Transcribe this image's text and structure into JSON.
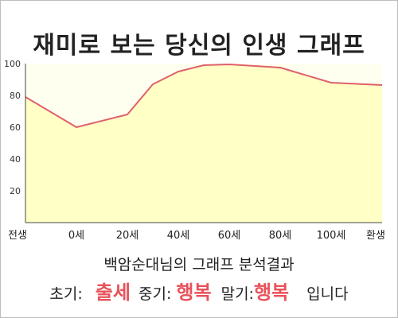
{
  "title": "재미로 보는 당신의 인생 그래프",
  "chart_data": {
    "type": "area",
    "categories": [
      "전생",
      "0세",
      "20세",
      "40세",
      "60세",
      "80세",
      "100세",
      "환생"
    ],
    "x": [
      -20,
      0,
      20,
      40,
      60,
      80,
      100,
      120
    ],
    "points": [
      {
        "x": -20,
        "y": 79
      },
      {
        "x": 0,
        "y": 60
      },
      {
        "x": 20,
        "y": 68
      },
      {
        "x": 30,
        "y": 87
      },
      {
        "x": 40,
        "y": 95
      },
      {
        "x": 50,
        "y": 99
      },
      {
        "x": 60,
        "y": 99.5
      },
      {
        "x": 80,
        "y": 97.5
      },
      {
        "x": 100,
        "y": 88
      },
      {
        "x": 120,
        "y": 86.5
      }
    ],
    "yticks": [
      20,
      40,
      60,
      80,
      100
    ],
    "xlim": [
      -20,
      120
    ],
    "ylim": [
      0,
      100
    ],
    "xlabel": "",
    "ylabel": "",
    "grid": false,
    "colors": {
      "line": "#e0606a",
      "fill": "#ffffc6",
      "plot_bg": "#fffff0",
      "axis": "#444444"
    }
  },
  "summary": {
    "label": "백암순대님의 그래프 분석결과"
  },
  "result": {
    "early_label": "초기:",
    "early_value": "출세",
    "mid_label": "중기:",
    "mid_value": "행복",
    "late_label": "말기:",
    "late_value": "행복",
    "ending": "입니다"
  }
}
